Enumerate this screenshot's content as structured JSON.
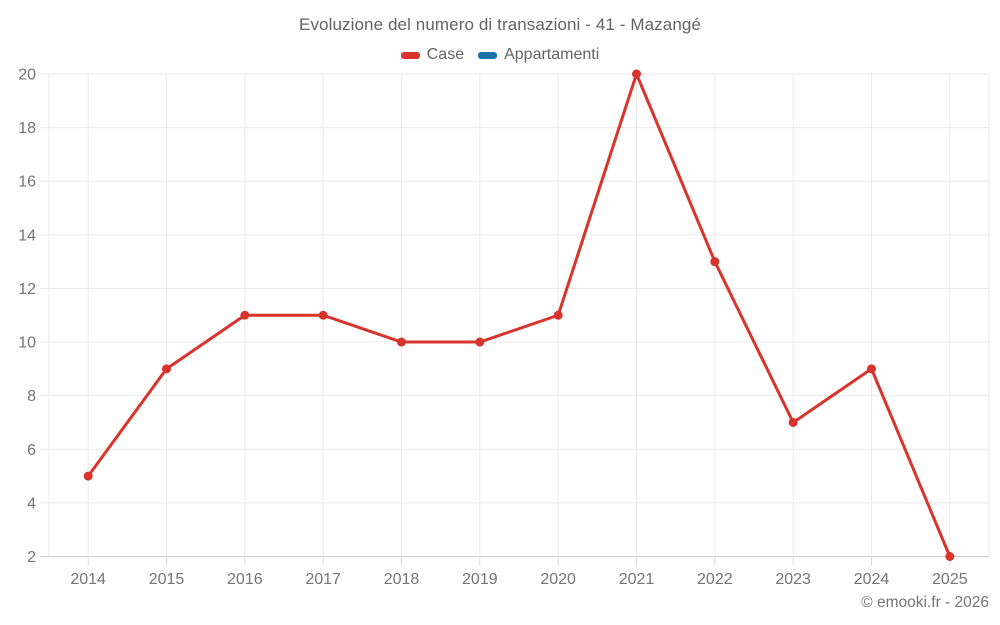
{
  "chart_data": {
    "type": "line",
    "title": "Evoluzione del numero di transazioni - 41 - Mazangé",
    "categories": [
      "2014",
      "2015",
      "2016",
      "2017",
      "2018",
      "2019",
      "2020",
      "2021",
      "2022",
      "2023",
      "2024",
      "2025"
    ],
    "series": [
      {
        "name": "Case",
        "color": "#d9342c",
        "values": [
          5,
          9,
          11,
          11,
          10,
          10,
          11,
          20,
          13,
          7,
          9,
          2
        ]
      },
      {
        "name": "Appartamenti",
        "color": "#1673a8",
        "values": []
      }
    ],
    "ylim": [
      2,
      20
    ],
    "yticks": [
      2,
      4,
      6,
      8,
      10,
      12,
      14,
      16,
      18,
      20
    ],
    "grid": true,
    "legend_position": "top",
    "colors": {
      "grid": "#e9e9e9",
      "axis_line": "#cccccc",
      "tick": "#d9d9d9",
      "tick_label": "#757575",
      "title": "#636363",
      "legend_label": "#636363",
      "footer": "#757575",
      "background": "#ffffff"
    }
  },
  "footer": {
    "copyright": "© emooki.fr - 2026"
  }
}
